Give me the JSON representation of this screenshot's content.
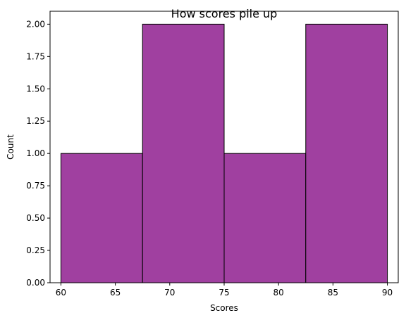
{
  "chart_data": {
    "type": "bar",
    "title": "How scores pile up",
    "xlabel": "Scores",
    "ylabel": "Count",
    "bins": [
      {
        "start": 60,
        "end": 67.5,
        "count": 1
      },
      {
        "start": 67.5,
        "end": 75,
        "count": 2
      },
      {
        "start": 75,
        "end": 82.5,
        "count": 1
      },
      {
        "start": 82.5,
        "end": 90,
        "count": 2
      }
    ],
    "xlim": [
      59,
      91
    ],
    "ylim": [
      0,
      2.1
    ],
    "x_ticks": [
      60,
      65,
      70,
      75,
      80,
      85,
      90
    ],
    "y_ticks": [
      0,
      0.25,
      0.5,
      0.75,
      1.0,
      1.25,
      1.5,
      1.75,
      2.0
    ],
    "y_tick_labels": [
      "0.00",
      "0.25",
      "0.50",
      "0.75",
      "1.00",
      "1.25",
      "1.50",
      "1.75",
      "2.00"
    ],
    "bar_color": "#a040a0",
    "edge_color": "#000000",
    "grid": false
  }
}
